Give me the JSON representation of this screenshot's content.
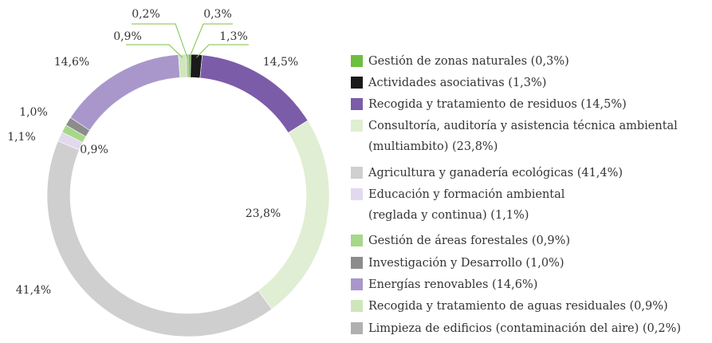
{
  "chart_data": {
    "type": "donut",
    "categories": [
      "Gestión de zonas naturales (0,3%)",
      "Actividades asociativas (1,3%)",
      "Recogida y tratamiento de residuos (14,5%)",
      "Consultoría, auditoría y asistencia técnica ambiental\n(multiambito) (23,8%)",
      "Agricultura y ganadería ecológicas (41,4%)",
      "Educación y formación ambiental\n(reglada y continua) (1,1%)",
      "Gestión de áreas forestales (0,9%)",
      "Investigación y Desarrollo (1,0%)",
      "Energías renovables (14,6%)",
      "Recogida y tratamiento de aguas residuales (0,9%)",
      "Limpieza de edificios (contaminación del aire) (0,2%)"
    ],
    "values": [
      0.3,
      1.3,
      14.5,
      23.8,
      41.4,
      1.1,
      0.9,
      1.0,
      14.6,
      0.9,
      0.2
    ],
    "value_labels": [
      "0,3%",
      "1,3%",
      "14,5%",
      "23,8%",
      "41,4%",
      "1,1%",
      "0,9%",
      "1,0%",
      "14,6%",
      "0,9%",
      "0,2%"
    ],
    "colors": [
      "#6cbf3f",
      "#1a1a1a",
      "#7b5ca8",
      "#e0eed3",
      "#cfcfcf",
      "#e3d9ee",
      "#a7d88a",
      "#8c8c8c",
      "#a997cb",
      "#cfe6bb",
      "#b0b0b0"
    ]
  }
}
